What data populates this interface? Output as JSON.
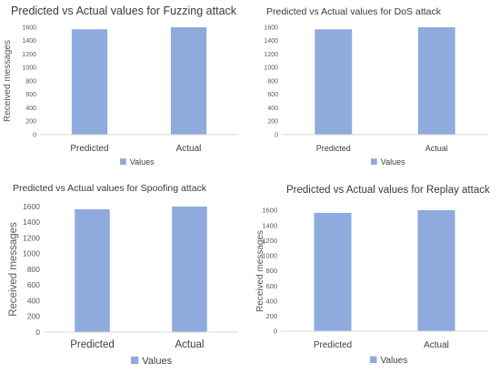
{
  "chart_data": [
    {
      "type": "bar",
      "title": "Predicted vs Actual values for Fuzzing attack",
      "ylabel": "Received messages",
      "xlabel": "",
      "categories": [
        "Predicted",
        "Actual"
      ],
      "series": [
        {
          "name": "Values",
          "values": [
            1570,
            1600
          ]
        }
      ],
      "ylim": [
        0,
        1600
      ],
      "yticks": [
        "0",
        "200",
        "400",
        "600",
        "800",
        "1000",
        "1200",
        "1400",
        "1600"
      ],
      "legend": "bottom",
      "grid": false,
      "bar_color": "#8faadc"
    },
    {
      "type": "bar",
      "title": "Predicted vs Actual values for DoS attack",
      "ylabel": "",
      "xlabel": "",
      "categories": [
        "Predicted",
        "Actual"
      ],
      "series": [
        {
          "name": "Values",
          "values": [
            1570,
            1600
          ]
        }
      ],
      "ylim": [
        0,
        1600
      ],
      "yticks": [
        "0",
        "200",
        "400",
        "600",
        "800",
        "1000",
        "1200",
        "1400",
        "1600"
      ],
      "legend": "bottom",
      "grid": false,
      "bar_color": "#8faadc"
    },
    {
      "type": "bar",
      "title": "Predicted vs Actual values for Spoofing attack",
      "ylabel": "Received messages",
      "xlabel": "",
      "categories": [
        "Predicted",
        "Actual"
      ],
      "series": [
        {
          "name": "Values",
          "values": [
            1565,
            1600
          ]
        }
      ],
      "ylim": [
        0,
        1600
      ],
      "yticks": [
        "0",
        "200",
        "400",
        "600",
        "800",
        "1000",
        "1200",
        "1400",
        "1600"
      ],
      "legend": "bottom",
      "grid": false,
      "bar_color": "#8faadc"
    },
    {
      "type": "bar",
      "title": "Predicted vs Actual values for Replay attack",
      "ylabel": "Received messages",
      "xlabel": "",
      "categories": [
        "Predicted",
        "Actual"
      ],
      "series": [
        {
          "name": "Values",
          "values": [
            1565,
            1600
          ]
        }
      ],
      "ylim": [
        0,
        1600
      ],
      "yticks": [
        "0",
        "200",
        "400",
        "600",
        "800",
        "1000",
        "1200",
        "1400",
        "1600"
      ],
      "legend": "bottom",
      "grid": false,
      "bar_color": "#8faadc"
    }
  ]
}
